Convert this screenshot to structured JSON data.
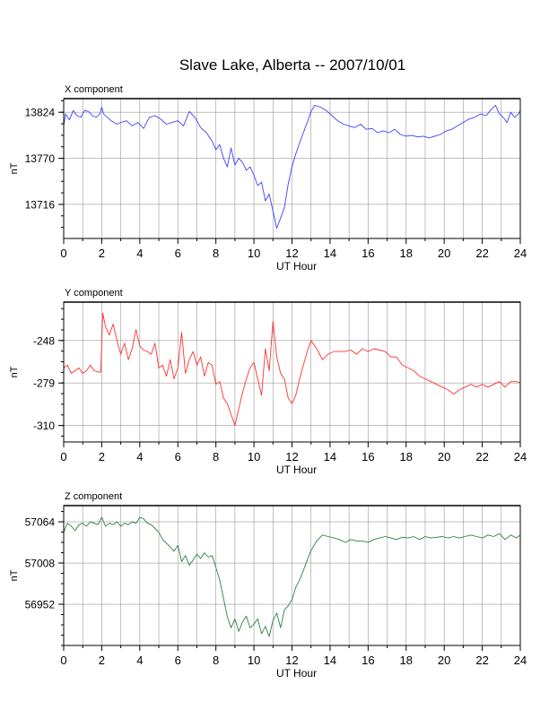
{
  "title": "Slave Lake, Alberta -- 2007/10/01",
  "colors": {
    "grid": "#999999",
    "axis": "#000000"
  },
  "chart_data": [
    {
      "type": "line",
      "panel_label": "X component",
      "xlabel": "UT Hour",
      "ylabel": "nT",
      "xlim": [
        0,
        24
      ],
      "x_ticks": [
        0,
        2,
        4,
        6,
        8,
        10,
        12,
        14,
        16,
        18,
        20,
        22,
        24
      ],
      "ylim": [
        13676,
        13840
      ],
      "y_ticks": [
        13824,
        13770,
        13716
      ],
      "grid": true,
      "color": "#4040ff",
      "series": [
        {
          "x": [
            0,
            0.1,
            0.3,
            0.5,
            0.7,
            0.9,
            1.1,
            1.3,
            1.5,
            1.7,
            1.9,
            2.0,
            2.1,
            2.3,
            2.5,
            2.8,
            3.0,
            3.3,
            3.6,
            3.9,
            4.2,
            4.5,
            4.8,
            5.1,
            5.4,
            5.7,
            6.0,
            6.3,
            6.6,
            6.9,
            7.2,
            7.5,
            7.8,
            8.0,
            8.2,
            8.4,
            8.6,
            8.8,
            9.0,
            9.2,
            9.4,
            9.6,
            9.8,
            10.0,
            10.2,
            10.4,
            10.6,
            10.8,
            11.0,
            11.2,
            11.4,
            11.6,
            11.8,
            12.0,
            12.2,
            12.4,
            12.6,
            12.8,
            13.0,
            13.2,
            13.5,
            13.8,
            14.1,
            14.4,
            14.7,
            15.0,
            15.3,
            15.6,
            15.9,
            16.2,
            16.5,
            16.8,
            17.1,
            17.4,
            17.7,
            18.0,
            18.3,
            18.6,
            18.9,
            19.2,
            19.5,
            19.8,
            20.1,
            20.4,
            20.7,
            21.0,
            21.3,
            21.6,
            21.9,
            22.2,
            22.5,
            22.7,
            22.9,
            23.1,
            23.3,
            23.5,
            23.7,
            23.9,
            24.0
          ],
          "y": [
            13808,
            13822,
            13815,
            13826,
            13820,
            13818,
            13826,
            13825,
            13820,
            13818,
            13822,
            13830,
            13822,
            13818,
            13814,
            13810,
            13812,
            13814,
            13808,
            13812,
            13805,
            13818,
            13820,
            13816,
            13810,
            13812,
            13814,
            13808,
            13825,
            13818,
            13806,
            13800,
            13790,
            13780,
            13786,
            13770,
            13760,
            13782,
            13762,
            13770,
            13765,
            13756,
            13760,
            13750,
            13738,
            13742,
            13720,
            13728,
            13708,
            13688,
            13700,
            13712,
            13740,
            13760,
            13775,
            13788,
            13800,
            13812,
            13825,
            13832,
            13830,
            13826,
            13820,
            13814,
            13810,
            13808,
            13806,
            13810,
            13804,
            13805,
            13800,
            13802,
            13800,
            13804,
            13798,
            13796,
            13797,
            13795,
            13796,
            13794,
            13796,
            13798,
            13802,
            13804,
            13808,
            13812,
            13816,
            13818,
            13822,
            13820,
            13828,
            13832,
            13822,
            13818,
            13812,
            13824,
            13818,
            13822,
            13826
          ]
        }
      ]
    },
    {
      "type": "line",
      "panel_label": "Y component",
      "xlabel": "UT Hour",
      "ylabel": "nT",
      "xlim": [
        0,
        24
      ],
      "x_ticks": [
        0,
        2,
        4,
        6,
        8,
        10,
        12,
        14,
        16,
        18,
        20,
        22,
        24
      ],
      "ylim": [
        -322,
        -220
      ],
      "y_ticks": [
        -248,
        -279,
        -310
      ],
      "grid": true,
      "color": "#ff3030",
      "series": [
        {
          "x": [
            0,
            0.2,
            0.4,
            0.6,
            0.8,
            1.0,
            1.2,
            1.4,
            1.6,
            1.8,
            1.95,
            2.05,
            2.2,
            2.4,
            2.6,
            2.8,
            3.0,
            3.2,
            3.4,
            3.6,
            3.8,
            4.0,
            4.2,
            4.4,
            4.6,
            4.8,
            5.0,
            5.2,
            5.4,
            5.6,
            5.8,
            6.0,
            6.2,
            6.4,
            6.6,
            6.8,
            7.0,
            7.2,
            7.4,
            7.6,
            7.8,
            8.0,
            8.2,
            8.4,
            8.6,
            8.8,
            9.0,
            9.2,
            9.4,
            9.6,
            9.8,
            10.0,
            10.2,
            10.4,
            10.6,
            10.8,
            11.0,
            11.2,
            11.4,
            11.6,
            11.8,
            12.0,
            12.2,
            12.4,
            12.6,
            12.8,
            13.0,
            13.3,
            13.6,
            13.9,
            14.2,
            14.5,
            14.8,
            15.1,
            15.4,
            15.7,
            16.0,
            16.3,
            16.6,
            16.9,
            17.2,
            17.5,
            17.8,
            18.1,
            18.4,
            18.7,
            19.0,
            19.3,
            19.6,
            19.9,
            20.2,
            20.5,
            20.8,
            21.1,
            21.4,
            21.7,
            22.0,
            22.3,
            22.6,
            22.9,
            23.2,
            23.5,
            23.8,
            24.0
          ],
          "y": [
            -268,
            -266,
            -272,
            -270,
            -268,
            -272,
            -270,
            -266,
            -270,
            -271,
            -271,
            -228,
            -238,
            -244,
            -236,
            -248,
            -258,
            -250,
            -262,
            -254,
            -240,
            -252,
            -255,
            -256,
            -258,
            -250,
            -268,
            -266,
            -274,
            -262,
            -276,
            -268,
            -242,
            -272,
            -262,
            -256,
            -266,
            -260,
            -274,
            -264,
            -266,
            -280,
            -278,
            -290,
            -294,
            -302,
            -310,
            -298,
            -286,
            -276,
            -268,
            -264,
            -276,
            -288,
            -254,
            -270,
            -234,
            -260,
            -272,
            -276,
            -290,
            -294,
            -288,
            -276,
            -266,
            -256,
            -248,
            -254,
            -262,
            -258,
            -256,
            -256,
            -256,
            -255,
            -258,
            -254,
            -256,
            -254,
            -255,
            -256,
            -260,
            -260,
            -266,
            -268,
            -270,
            -274,
            -276,
            -278,
            -280,
            -282,
            -284,
            -287,
            -284,
            -282,
            -280,
            -282,
            -280,
            -282,
            -280,
            -278,
            -282,
            -278,
            -278,
            -279
          ]
        }
      ]
    },
    {
      "type": "line",
      "panel_label": "Z component",
      "xlabel": "UT Hour",
      "ylabel": "nT",
      "xlim": [
        0,
        24
      ],
      "x_ticks": [
        0,
        2,
        4,
        6,
        8,
        10,
        12,
        14,
        16,
        18,
        20,
        22,
        24
      ],
      "ylim": [
        56896,
        57086
      ],
      "y_ticks": [
        57064,
        57008,
        56952
      ],
      "grid": true,
      "color": "#2e8040",
      "series": [
        {
          "x": [
            0,
            0.2,
            0.4,
            0.6,
            0.8,
            1.0,
            1.2,
            1.4,
            1.6,
            1.8,
            2.0,
            2.2,
            2.4,
            2.6,
            2.8,
            3.0,
            3.2,
            3.4,
            3.6,
            3.8,
            4.0,
            4.2,
            4.4,
            4.6,
            4.8,
            5.0,
            5.2,
            5.4,
            5.6,
            5.8,
            6.0,
            6.2,
            6.4,
            6.6,
            6.8,
            7.0,
            7.2,
            7.4,
            7.6,
            7.8,
            8.0,
            8.2,
            8.4,
            8.6,
            8.8,
            9.0,
            9.2,
            9.4,
            9.6,
            9.8,
            10.0,
            10.2,
            10.4,
            10.6,
            10.8,
            11.0,
            11.2,
            11.4,
            11.6,
            11.8,
            12.0,
            12.2,
            12.4,
            12.6,
            12.8,
            13.0,
            13.3,
            13.6,
            13.9,
            14.2,
            14.5,
            14.8,
            15.1,
            15.4,
            15.7,
            16.0,
            16.3,
            16.6,
            16.9,
            17.2,
            17.5,
            17.8,
            18.1,
            18.4,
            18.7,
            19.0,
            19.3,
            19.6,
            19.9,
            20.2,
            20.5,
            20.8,
            21.1,
            21.4,
            21.7,
            22.0,
            22.3,
            22.6,
            22.9,
            23.2,
            23.5,
            23.8,
            24.0
          ],
          "y": [
            57050,
            57062,
            57058,
            57052,
            57060,
            57062,
            57058,
            57064,
            57062,
            57060,
            57070,
            57058,
            57062,
            57060,
            57064,
            57058,
            57062,
            57060,
            57064,
            57062,
            57070,
            57068,
            57062,
            57060,
            57055,
            57050,
            57040,
            57035,
            57030,
            57024,
            57032,
            57010,
            57018,
            57005,
            57012,
            57020,
            57014,
            57022,
            57016,
            57018,
            57002,
            56985,
            56960,
            56935,
            56920,
            56932,
            56915,
            56928,
            56936,
            56920,
            56925,
            56932,
            56912,
            56922,
            56908,
            56930,
            56940,
            56920,
            56944,
            56950,
            56958,
            56975,
            56985,
            56998,
            57012,
            57025,
            57038,
            57046,
            57044,
            57042,
            57040,
            57036,
            57040,
            57038,
            57038,
            57036,
            57040,
            57042,
            57044,
            57042,
            57040,
            57043,
            57042,
            57044,
            57040,
            57044,
            57042,
            57043,
            57044,
            57042,
            57044,
            57042,
            57044,
            57046,
            57044,
            57042,
            57046,
            57044,
            57048,
            57040,
            57046,
            57042,
            57046
          ]
        }
      ]
    }
  ]
}
